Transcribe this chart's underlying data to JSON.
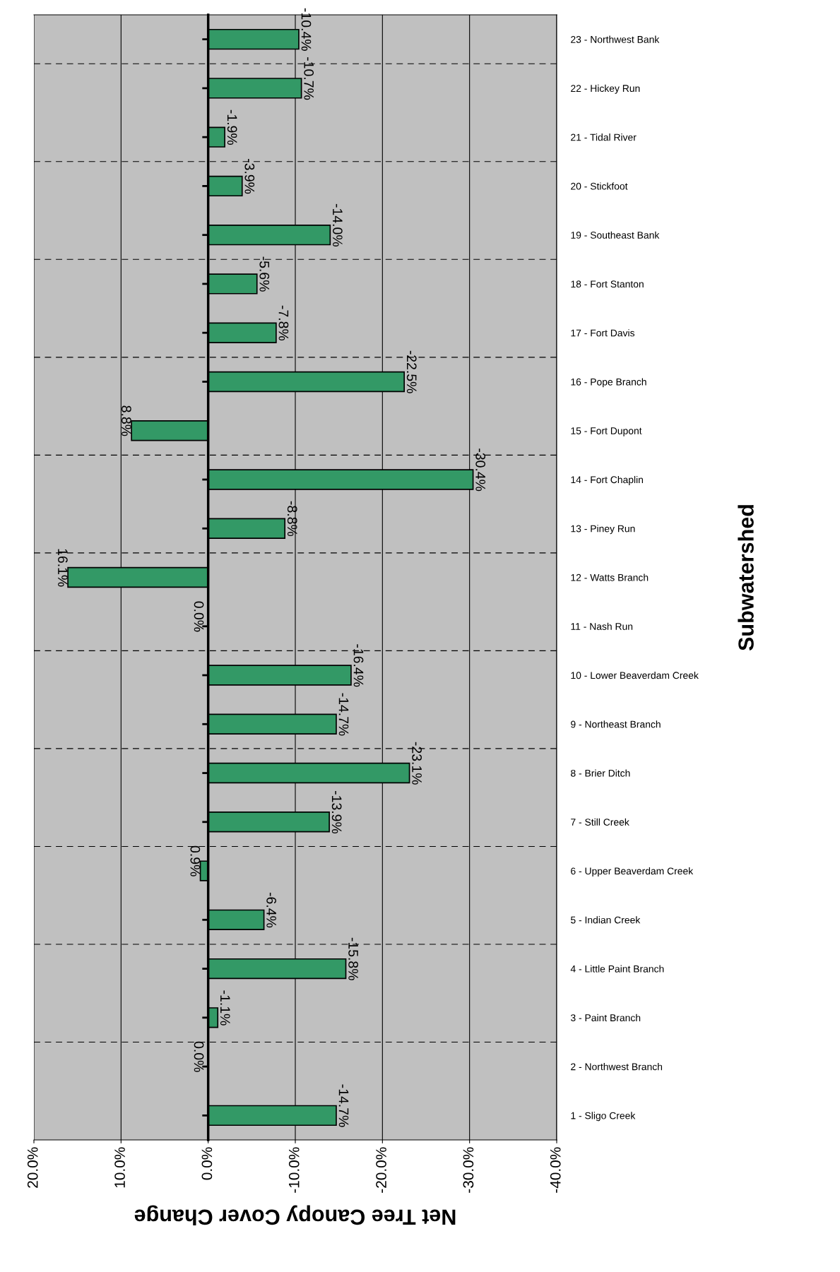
{
  "chart_data": {
    "type": "bar",
    "orientation": "horizontal",
    "xlabel": "Net Tree Canopy Cover Change",
    "ylabel": "Subwatershed",
    "categories": [
      "23 - Northwest Bank",
      "22 - Hickey Run",
      "21 - Tidal River",
      "20 - Stickfoot",
      "19 - Southeast Bank",
      "18 - Fort Stanton",
      "17 - Fort Davis",
      "16 - Pope Branch",
      "15 - Fort Dupont",
      "14 - Fort Chaplin",
      "13 - Piney Run",
      "12 - Watts Branch",
      "11 - Nash Run",
      "10 - Lower Beaverdam Creek",
      "9 - Northeast Branch",
      "8 - Brier Ditch",
      "7 - Still Creek",
      "6 - Upper Beaverdam Creek",
      "5 - Indian Creek",
      "4 - Little Paint Branch",
      "3 - Paint Branch",
      "2 - Northwest Branch",
      "1 - Sligo Creek"
    ],
    "values": [
      -10.4,
      -10.7,
      -1.9,
      -3.9,
      -14.0,
      -5.6,
      -7.8,
      -22.5,
      8.8,
      -30.4,
      -8.8,
      16.1,
      0.0,
      -16.4,
      -14.7,
      -23.1,
      -13.9,
      0.9,
      -6.4,
      -15.8,
      -1.1,
      0.0,
      -14.7
    ],
    "value_labels": [
      "-10.4%",
      "-10.7%",
      "-1.9%",
      "-3.9%",
      "-14.0%",
      "-5.6%",
      "-7.8%",
      "-22.5%",
      "8.8%",
      "-30.4%",
      "-8.8%",
      "16.1%",
      "0.0%",
      "-16.4%",
      "-14.7%",
      "-23.1%",
      "-13.9%",
      "0.9%",
      "-6.4%",
      "-15.8%",
      "-1.1%",
      "0.0%",
      "-14.7%"
    ],
    "color": "#339966",
    "xlim": [
      20,
      -40
    ],
    "xticks": [
      {
        "value": 20,
        "label": "20.0%"
      },
      {
        "value": 10,
        "label": "10.0%"
      },
      {
        "value": 0,
        "label": "0.0%"
      },
      {
        "value": -10,
        "label": "-10.0%"
      },
      {
        "value": -20,
        "label": "-20.0%"
      },
      {
        "value": -30,
        "label": "-30.0%"
      },
      {
        "value": -40,
        "label": "-40.0%"
      }
    ],
    "grid": true,
    "legend": false
  }
}
